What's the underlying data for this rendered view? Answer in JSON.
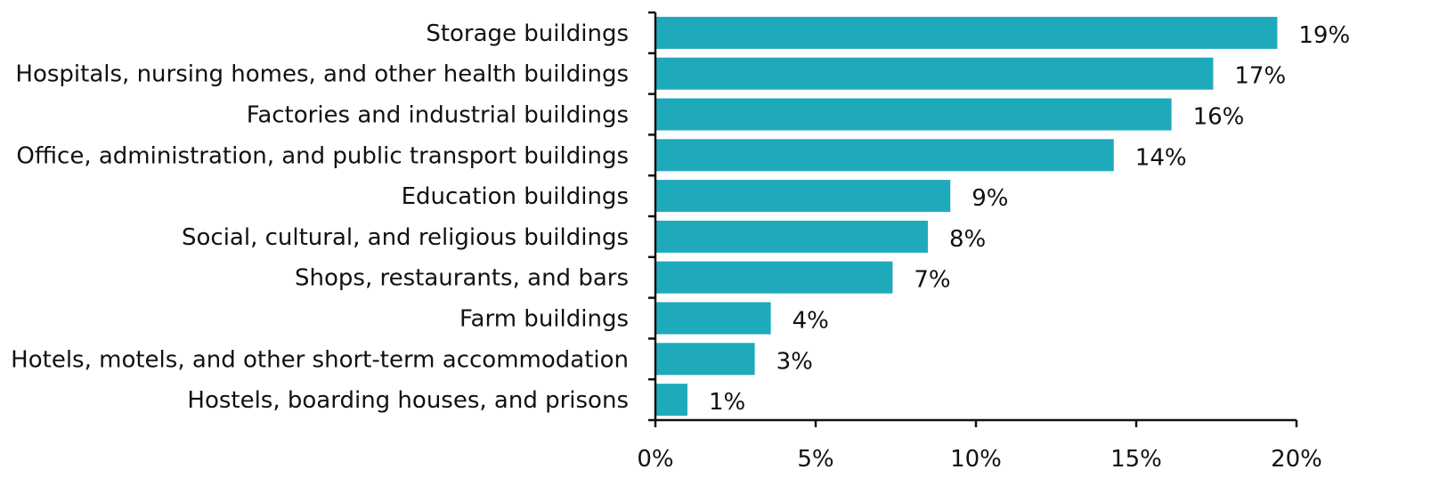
{
  "colors": {
    "bar": "#1faabb",
    "text": "#111111",
    "axis": "#111111",
    "background": "#ffffff"
  },
  "chart_data": {
    "type": "bar",
    "orientation": "horizontal",
    "title": "",
    "xlabel": "",
    "ylabel": "",
    "grid": false,
    "legend": "none",
    "xlim": [
      0,
      20
    ],
    "x_ticks": [
      0,
      5,
      10,
      15,
      20
    ],
    "x_tick_labels": [
      "0%",
      "5%",
      "10%",
      "15%",
      "20%"
    ],
    "categories": [
      "Storage buildings",
      "Hospitals, nursing homes, and other health buildings",
      "Factories and industrial buildings",
      "Office, administration, and public transport buildings",
      "Education buildings",
      "Social, cultural, and religious buildings",
      "Shops, restaurants, and bars",
      "Farm buildings",
      "Hotels, motels, and other short-term accommodation",
      "Hostels, boarding houses, and prisons"
    ],
    "values": [
      19.4,
      17.4,
      16.1,
      14.3,
      9.2,
      8.5,
      7.4,
      3.6,
      3.1,
      1.0
    ],
    "value_labels": [
      "19%",
      "17%",
      "16%",
      "14%",
      "9%",
      "8%",
      "7%",
      "4%",
      "3%",
      "1%"
    ]
  }
}
